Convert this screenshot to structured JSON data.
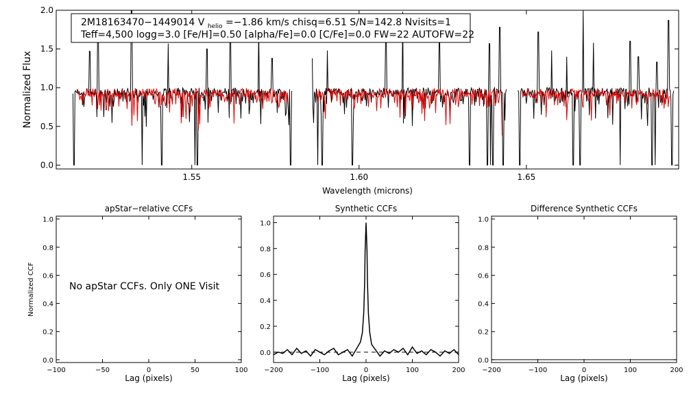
{
  "colors": {
    "observed": "#000000",
    "model": "#e00000",
    "axes": "#000000",
    "background": "#ffffff"
  },
  "info": {
    "line1_star": "2M18163470−1449014",
    "line1_v": "V",
    "line1_vsub": "helio",
    "line1_rest": "=−1.86 km/s  chisq=6.51  S/N=142.8  Nvisits=1",
    "line2": "Teff=4,500 logg=3.0 [Fe/H]=0.50 [alpha/Fe]=0.0 [C/Fe]=0.0 FW=22 AUTOFW=22"
  },
  "no_ccf_message": "No apStar CCFs.  Only ONE Visit",
  "chart_data": [
    {
      "id": "spectrum",
      "type": "line",
      "title": "",
      "xlabel": "Wavelength (microns)",
      "ylabel": "Normalized Flux",
      "xlim": [
        1.5095,
        1.6955
      ],
      "ylim": [
        -0.05,
        2.0
      ],
      "xticks": [
        1.55,
        1.6,
        1.65
      ],
      "xtick_labels": [
        "1.55",
        "1.60",
        "1.65"
      ],
      "yticks": [
        0.0,
        0.5,
        1.0,
        1.5,
        2.0
      ],
      "ytick_labels": [
        "0.0",
        "0.5",
        "1.0",
        "1.5",
        "2.0"
      ],
      "chips": [
        [
          1.5145,
          1.58
        ],
        [
          1.586,
          1.644
        ],
        [
          1.6475,
          1.694
        ]
      ],
      "series": [
        {
          "style": "observed",
          "continuum": 0.95,
          "noise": 0.05
        },
        {
          "style": "model",
          "continuum": 0.93,
          "noise": 0.06
        }
      ],
      "absorption_lines": [
        [
          1.5148,
          0.0
        ],
        [
          1.5352,
          0.0
        ],
        [
          1.541,
          0.0
        ],
        [
          1.551,
          0.0
        ],
        [
          1.5517,
          0.0
        ],
        [
          1.5795,
          0.0
        ],
        [
          1.5876,
          0.0
        ],
        [
          1.589,
          0.0
        ],
        [
          1.598,
          0.0
        ],
        [
          1.613,
          0.0
        ],
        [
          1.633,
          0.0
        ],
        [
          1.6383,
          0.0
        ],
        [
          1.6392,
          0.0
        ],
        [
          1.64,
          0.0
        ],
        [
          1.643,
          0.0
        ],
        [
          1.648,
          0.0
        ],
        [
          1.662,
          0.0
        ],
        [
          1.664,
          0.0
        ],
        [
          1.666,
          0.0
        ],
        [
          1.678,
          0.0
        ],
        [
          1.6875,
          0.0
        ],
        [
          1.6885,
          0.0
        ],
        [
          1.6935,
          0.0
        ]
      ],
      "emission_spikes": [
        [
          1.5195,
          1.47
        ],
        [
          1.522,
          1.8
        ],
        [
          1.532,
          2.0
        ],
        [
          1.543,
          1.57
        ],
        [
          1.5545,
          1.5
        ],
        [
          1.5615,
          1.75
        ],
        [
          1.57,
          1.78
        ],
        [
          1.574,
          1.38
        ],
        [
          1.586,
          1.38
        ],
        [
          1.5905,
          1.48
        ],
        [
          1.608,
          1.65
        ],
        [
          1.613,
          1.98
        ],
        [
          1.624,
          1.58
        ],
        [
          1.639,
          1.57
        ],
        [
          1.642,
          1.78
        ],
        [
          1.6535,
          1.72
        ],
        [
          1.6575,
          1.48
        ],
        [
          1.662,
          1.4
        ],
        [
          1.667,
          2.0
        ],
        [
          1.67,
          1.58
        ],
        [
          1.681,
          1.6
        ],
        [
          1.6835,
          1.4
        ],
        [
          1.689,
          1.33
        ],
        [
          1.6925,
          1.87
        ]
      ]
    },
    {
      "id": "apstar-ccf",
      "type": "line",
      "title": "apStar−relative CCFs",
      "xlabel": "Lag (pixels)",
      "ylabel": "Normalized CCF",
      "xlim": [
        -100,
        100
      ],
      "ylim": [
        -0.02,
        1.02
      ],
      "xticks": [
        -100,
        -50,
        0,
        50,
        100
      ],
      "xtick_labels": [
        "−100",
        "−50",
        "0",
        "50",
        "100"
      ],
      "yticks": [
        0.0,
        0.2,
        0.4,
        0.6,
        0.8,
        1.0
      ],
      "ytick_labels": [
        "0.0",
        "0.2",
        "0.4",
        "0.6",
        "0.8",
        "1.0"
      ],
      "series": []
    },
    {
      "id": "synthetic-ccf",
      "type": "line",
      "title": "Synthetic CCFs",
      "xlabel": "Lag (pixels)",
      "ylabel": "",
      "xlim": [
        -200,
        200
      ],
      "ylim": [
        -0.08,
        1.05
      ],
      "xticks": [
        -200,
        -100,
        0,
        100,
        200
      ],
      "xtick_labels": [
        "−200",
        "−100",
        "0",
        "100",
        "200"
      ],
      "yticks": [
        0.0,
        0.2,
        0.4,
        0.6,
        0.8,
        1.0
      ],
      "ytick_labels": [
        "0.0",
        "0.2",
        "0.4",
        "0.6",
        "0.8",
        "1.0"
      ],
      "zero_line": true,
      "series": [
        {
          "style": "ccf",
          "x": [
            -200,
            -190,
            -180,
            -170,
            -160,
            -150,
            -140,
            -130,
            -120,
            -110,
            -100,
            -90,
            -80,
            -70,
            -60,
            -50,
            -40,
            -30,
            -20,
            -12,
            -8,
            -5,
            -3,
            -2,
            0,
            2,
            3,
            5,
            8,
            12,
            20,
            30,
            40,
            50,
            60,
            70,
            80,
            90,
            100,
            110,
            120,
            130,
            140,
            150,
            160,
            170,
            180,
            190,
            200
          ],
          "y": [
            -0.02,
            0.0,
            -0.01,
            0.02,
            -0.02,
            0.03,
            -0.01,
            0.01,
            -0.03,
            0.02,
            0.0,
            -0.02,
            0.01,
            0.03,
            -0.02,
            0.0,
            0.02,
            -0.03,
            0.03,
            0.08,
            0.15,
            0.3,
            0.55,
            0.78,
            1.0,
            0.78,
            0.55,
            0.3,
            0.15,
            0.06,
            0.02,
            -0.03,
            0.01,
            -0.01,
            0.02,
            0.0,
            0.03,
            -0.02,
            0.04,
            -0.01,
            0.01,
            -0.02,
            0.02,
            0.0,
            -0.03,
            0.01,
            -0.01,
            0.02,
            -0.02
          ]
        }
      ]
    },
    {
      "id": "difference-ccf",
      "type": "line",
      "title": "Difference Synthetic CCFs",
      "xlabel": "Lag (pixels)",
      "ylabel": "",
      "xlim": [
        -200,
        200
      ],
      "ylim": [
        -0.02,
        1.02
      ],
      "xticks": [
        -200,
        -100,
        0,
        100,
        200
      ],
      "xtick_labels": [
        "−200",
        "−100",
        "0",
        "100",
        "200"
      ],
      "yticks": [
        0.0,
        0.2,
        0.4,
        0.6,
        0.8,
        1.0
      ],
      "ytick_labels": [
        "0.0",
        "0.2",
        "0.4",
        "0.6",
        "0.8",
        "1.0"
      ],
      "series": [
        {
          "style": "flat",
          "x": [
            -200,
            200
          ],
          "y": [
            0.0,
            0.0
          ]
        }
      ]
    }
  ]
}
